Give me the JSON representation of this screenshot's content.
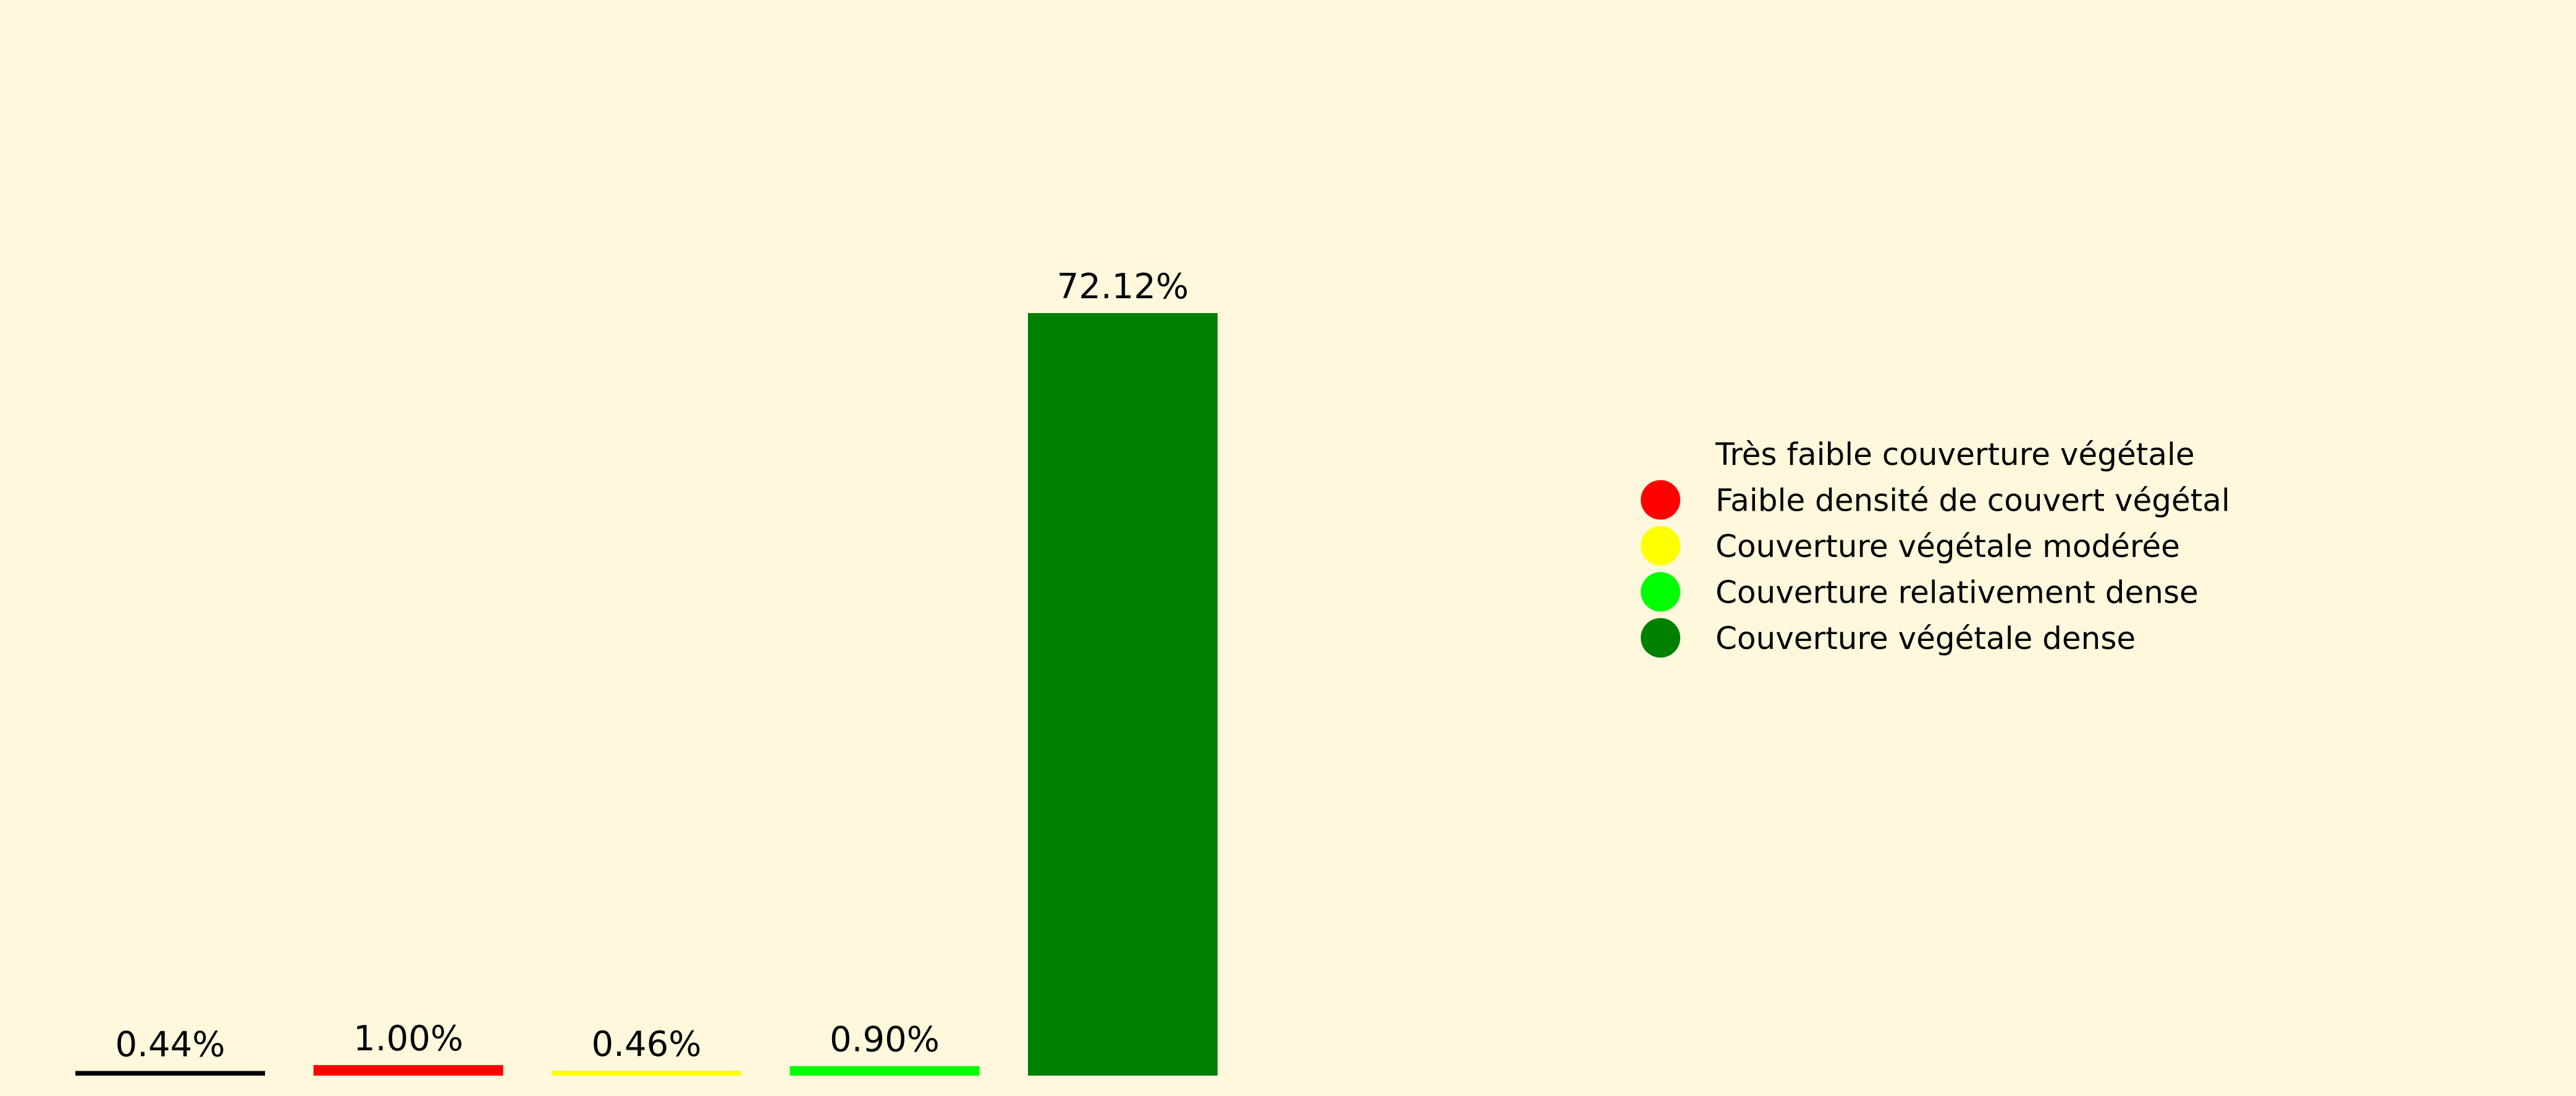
{
  "colors": {
    "background": "#fff8dc",
    "text": "#000000"
  },
  "chart_data": {
    "type": "bar",
    "title": "",
    "xlabel": "",
    "ylabel": "",
    "grid": false,
    "axes_visible": false,
    "legend_placement": "right",
    "ylim": [
      0,
      80
    ],
    "categories": [
      "Très faible couverture végétale",
      "Faible densité de couvert végétal",
      "Couverture végétale modérée",
      "Couverture relativement dense",
      "Couverture végétale dense"
    ],
    "values": [
      0.44,
      1.0,
      0.46,
      0.9,
      72.12
    ],
    "data_labels": [
      "0.44%",
      "1.00%",
      "0.46%",
      "0.90%",
      "72.12%"
    ],
    "colors": [
      "#000000",
      "#ff0000",
      "#ffff00",
      "#00ff00",
      "#008000"
    ],
    "legend": [
      {
        "label": "Très faible couverture végétale",
        "color": "#000000",
        "marker": "none"
      },
      {
        "label": "Faible densité de couvert végétal",
        "color": "#ff0000",
        "marker": "circle"
      },
      {
        "label": "Couverture végétale modérée",
        "color": "#ffff00",
        "marker": "circle"
      },
      {
        "label": "Couverture relativement dense",
        "color": "#00ff00",
        "marker": "circle"
      },
      {
        "label": "Couverture végétale dense",
        "color": "#008000",
        "marker": "circle"
      }
    ]
  }
}
